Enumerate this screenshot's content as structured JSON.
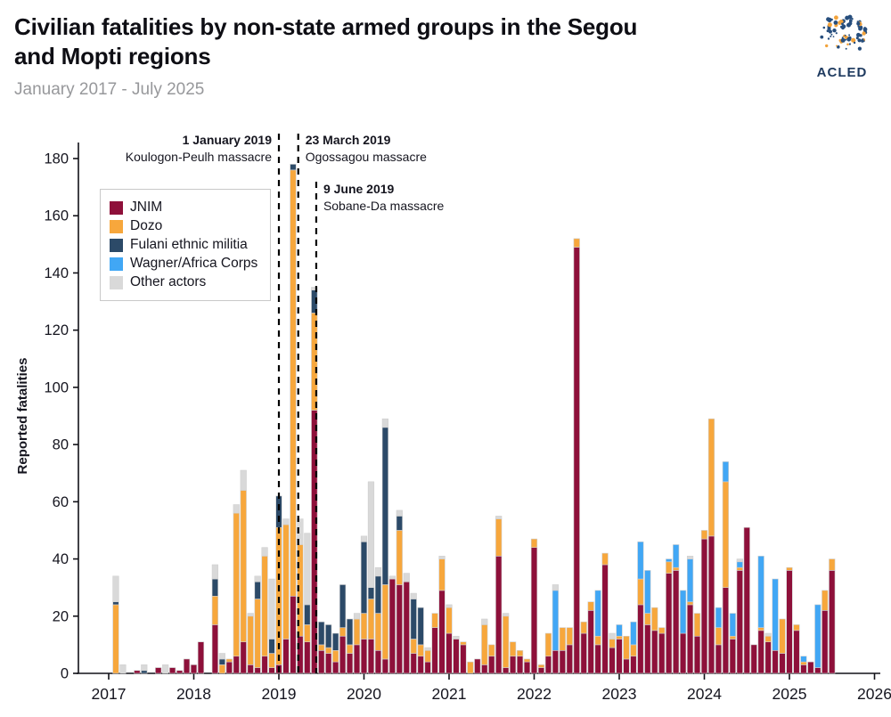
{
  "header": {
    "title_line1": "Civilian fatalities by non-state armed groups in the Segou",
    "title_line2": "and Mopti regions",
    "subtitle": "January 2017 - July 2025",
    "logo_text": "ACLED"
  },
  "chart_data": {
    "type": "bar",
    "stacked": true,
    "title": "Civilian fatalities by non-state armed groups in the Segou and Mopti regions",
    "subtitle": "January 2017 - July 2025",
    "xlabel": "",
    "ylabel": "Reported fatalities",
    "ylim": [
      0,
      185
    ],
    "yticks": [
      0,
      20,
      40,
      60,
      80,
      100,
      120,
      140,
      160,
      180
    ],
    "x_tick_years": [
      "2017",
      "2018",
      "2019",
      "2020",
      "2021",
      "2022",
      "2023",
      "2024",
      "2025",
      "2026"
    ],
    "start_month": "2017-01",
    "end_month": "2025-07",
    "grid": false,
    "legend_position": "upper-left",
    "series": [
      {
        "name": "JNIM",
        "color": "#8E103A"
      },
      {
        "name": "Dozo",
        "color": "#F7A73C"
      },
      {
        "name": "Fulani ethnic militia",
        "color": "#2C4A68"
      },
      {
        "name": "Wagner/Africa Corps",
        "color": "#41A7F5"
      },
      {
        "name": "Other actors",
        "color": "#D9D9D9"
      }
    ],
    "monthly_values_order": [
      "JNIM",
      "Dozo",
      "Fulani ethnic militia",
      "Wagner/Africa Corps",
      "Other actors"
    ],
    "monthly_values": [
      [
        0,
        0,
        0,
        0,
        0
      ],
      [
        0,
        24,
        1,
        0,
        9
      ],
      [
        0,
        0,
        0,
        0,
        3
      ],
      [
        0,
        0,
        0,
        0,
        0
      ],
      [
        1,
        0,
        0,
        0,
        0
      ],
      [
        0,
        0,
        1,
        0,
        2
      ],
      [
        0,
        0,
        0,
        0,
        0
      ],
      [
        2,
        0,
        0,
        0,
        0
      ],
      [
        0,
        0,
        0,
        0,
        3
      ],
      [
        2,
        0,
        0,
        0,
        0
      ],
      [
        1,
        0,
        0,
        0,
        0
      ],
      [
        5,
        0,
        0,
        0,
        0
      ],
      [
        3,
        0,
        0,
        0,
        0
      ],
      [
        11,
        0,
        0,
        0,
        0
      ],
      [
        0,
        0,
        0,
        0,
        0
      ],
      [
        17,
        10,
        6,
        0,
        5
      ],
      [
        0,
        3,
        2,
        0,
        2
      ],
      [
        4,
        1,
        0,
        0,
        0
      ],
      [
        6,
        50,
        0,
        0,
        3
      ],
      [
        11,
        53,
        0,
        0,
        7
      ],
      [
        3,
        17,
        0,
        0,
        1
      ],
      [
        2,
        24,
        6,
        0,
        2
      ],
      [
        6,
        35,
        0,
        0,
        3
      ],
      [
        2,
        5,
        5,
        0,
        21
      ],
      [
        3,
        48,
        11,
        0,
        0
      ],
      [
        12,
        40,
        0,
        0,
        2
      ],
      [
        27,
        149,
        2,
        0,
        0
      ],
      [
        13,
        32,
        0,
        0,
        9
      ],
      [
        11,
        6,
        7,
        0,
        25
      ],
      [
        92,
        34,
        8,
        0,
        1
      ],
      [
        8,
        2,
        8,
        0,
        0
      ],
      [
        7,
        2,
        8,
        0,
        0
      ],
      [
        4,
        4,
        6,
        0,
        0
      ],
      [
        13,
        3,
        15,
        0,
        0
      ],
      [
        7,
        3,
        9,
        0,
        0
      ],
      [
        10,
        9,
        0,
        0,
        2
      ],
      [
        12,
        9,
        25,
        0,
        2
      ],
      [
        12,
        14,
        4,
        0,
        37
      ],
      [
        8,
        13,
        13,
        0,
        3
      ],
      [
        5,
        26,
        55,
        0,
        3
      ],
      [
        33,
        0,
        0,
        0,
        1
      ],
      [
        31,
        19,
        5,
        0,
        2
      ],
      [
        32,
        0,
        0,
        0,
        3
      ],
      [
        7,
        5,
        14,
        0,
        2
      ],
      [
        6,
        4,
        13,
        0,
        0
      ],
      [
        4,
        4,
        0,
        0,
        1
      ],
      [
        16,
        5,
        0,
        0,
        0
      ],
      [
        29,
        11,
        0,
        0,
        1
      ],
      [
        14,
        9,
        0,
        0,
        1
      ],
      [
        12,
        0,
        0,
        0,
        1
      ],
      [
        10,
        1,
        0,
        0,
        0
      ],
      [
        0,
        4,
        0,
        0,
        0
      ],
      [
        5,
        0,
        0,
        0,
        0
      ],
      [
        3,
        14,
        0,
        0,
        2
      ],
      [
        6,
        4,
        0,
        0,
        0
      ],
      [
        41,
        13,
        0,
        0,
        1
      ],
      [
        2,
        18,
        0,
        0,
        1
      ],
      [
        6,
        5,
        0,
        0,
        0
      ],
      [
        6,
        2,
        0,
        0,
        0
      ],
      [
        4,
        1,
        0,
        0,
        0
      ],
      [
        44,
        3,
        0,
        0,
        0
      ],
      [
        2,
        1,
        0,
        0,
        0
      ],
      [
        6,
        8,
        0,
        0,
        0
      ],
      [
        8,
        0,
        0,
        21,
        2
      ],
      [
        8,
        8,
        0,
        0,
        0
      ],
      [
        10,
        6,
        0,
        0,
        0
      ],
      [
        149,
        3,
        0,
        0,
        0
      ],
      [
        14,
        4,
        0,
        0,
        0
      ],
      [
        22,
        3,
        0,
        0,
        0
      ],
      [
        10,
        3,
        0,
        16,
        0
      ],
      [
        38,
        4,
        0,
        0,
        0
      ],
      [
        9,
        3,
        0,
        0,
        2
      ],
      [
        12,
        1,
        0,
        4,
        0
      ],
      [
        5,
        8,
        0,
        0,
        0
      ],
      [
        6,
        4,
        0,
        8,
        0
      ],
      [
        24,
        9,
        0,
        13,
        0
      ],
      [
        17,
        4,
        0,
        15,
        0
      ],
      [
        15,
        8,
        0,
        0,
        0
      ],
      [
        14,
        2,
        0,
        0,
        0
      ],
      [
        35,
        4,
        0,
        1,
        0
      ],
      [
        36,
        1,
        0,
        8,
        0
      ],
      [
        14,
        0,
        0,
        15,
        0
      ],
      [
        24,
        1,
        0,
        15,
        1
      ],
      [
        13,
        8,
        0,
        0,
        0
      ],
      [
        47,
        3,
        0,
        0,
        0
      ],
      [
        48,
        41,
        0,
        0,
        0
      ],
      [
        10,
        6,
        0,
        7,
        0
      ],
      [
        30,
        37,
        0,
        7,
        0
      ],
      [
        12,
        1,
        0,
        8,
        0
      ],
      [
        36,
        1,
        0,
        2,
        1
      ],
      [
        51,
        0,
        0,
        0,
        0
      ],
      [
        10,
        0,
        0,
        0,
        0
      ],
      [
        15,
        1,
        0,
        25,
        0
      ],
      [
        11,
        2,
        0,
        0,
        1
      ],
      [
        8,
        0,
        0,
        25,
        0
      ],
      [
        7,
        12,
        0,
        0,
        0
      ],
      [
        36,
        1,
        0,
        0,
        0
      ],
      [
        15,
        2,
        0,
        0,
        0
      ],
      [
        3,
        1,
        0,
        2,
        0
      ],
      [
        4,
        0,
        0,
        0,
        0
      ],
      [
        2,
        0,
        0,
        22,
        0
      ],
      [
        22,
        7,
        0,
        0,
        0
      ],
      [
        36,
        4,
        0,
        0,
        0
      ]
    ],
    "annotations": [
      {
        "date_label": "1 January 2019",
        "event_label": "Koulogon-Peulh massacre",
        "month_index": 24,
        "day_fraction": 0.0,
        "label_side": "left",
        "line_top": 10,
        "label_top": 22
      },
      {
        "date_label": "23 March 2019",
        "event_label": "Ogossagou massacre",
        "month_index": 26,
        "day_fraction": 0.73,
        "label_side": "right",
        "line_top": 10,
        "label_top": 22
      },
      {
        "date_label": "9 June 2019",
        "event_label": "Sobane-Da massacre",
        "month_index": 29,
        "day_fraction": 0.27,
        "label_side": "right",
        "line_top": 64,
        "label_top": 77
      }
    ]
  }
}
